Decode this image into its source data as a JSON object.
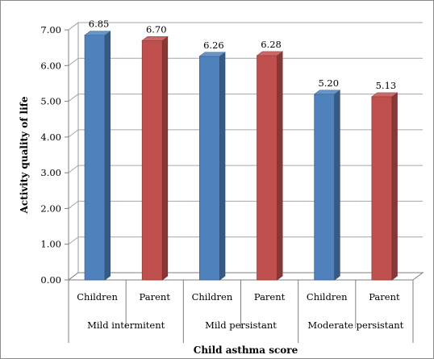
{
  "chart_data": {
    "type": "bar",
    "title": "",
    "xlabel": "Child asthma score",
    "ylabel": "Activity quality of life",
    "ylim": [
      0,
      7
    ],
    "yticks": [
      "0.00",
      "1.00",
      "2.00",
      "3.00",
      "4.00",
      "5.00",
      "6.00",
      "7.00"
    ],
    "groups": [
      "Mild intermitent",
      "Mild persistant",
      "Moderate persistant"
    ],
    "categories": [
      "Children",
      "Parent",
      "Children",
      "Parent",
      "Children",
      "Parent"
    ],
    "values": [
      6.85,
      6.7,
      6.26,
      6.28,
      5.2,
      5.13
    ],
    "value_labels": [
      "6.85",
      "6.70",
      "6.26",
      "6.28",
      "5.20",
      "5.13"
    ],
    "colors": [
      "#4f81bd",
      "#c0504d",
      "#4f81bd",
      "#c0504d",
      "#4f81bd",
      "#c0504d"
    ],
    "grid": true,
    "style": "3d-column"
  }
}
